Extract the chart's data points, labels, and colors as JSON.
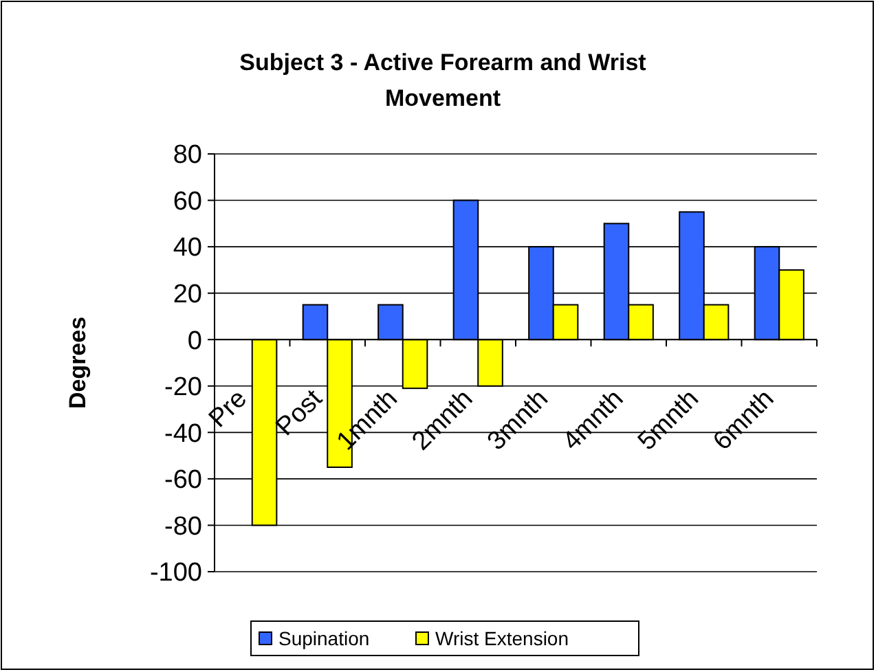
{
  "chart_data": {
    "type": "bar",
    "title": "Subject 3 - Active Forearm and Wrist Movement",
    "ylabel": "Degrees",
    "categories": [
      "Pre",
      "Post",
      "1mnth",
      "2mnth",
      "3mnth",
      "4mnth",
      "5mnth",
      "6mnth"
    ],
    "series": [
      {
        "name": "Supination",
        "color": "#3366ff",
        "values": [
          null,
          15,
          15,
          60,
          40,
          50,
          55,
          40
        ]
      },
      {
        "name": "Wrist Extension",
        "color": "#ffff00",
        "values": [
          -80,
          -55,
          -21,
          -20,
          15,
          15,
          15,
          30
        ]
      }
    ],
    "ylim": [
      -100,
      80
    ],
    "yticks": [
      -100,
      -80,
      -60,
      -40,
      -20,
      0,
      20,
      40,
      60,
      80
    ],
    "grid": "y",
    "legend": "bottom"
  }
}
